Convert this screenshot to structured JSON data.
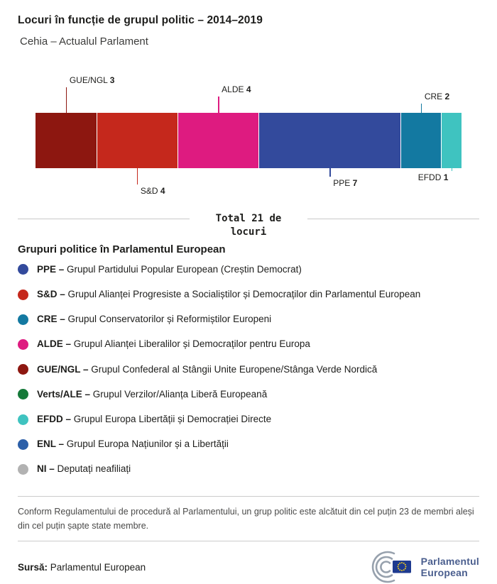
{
  "chart_data": {
    "type": "bar",
    "variant": "horizontal-stacked-seats",
    "title": "Locuri în funcție de grupul politic – 2014–2019",
    "subtitle": "Cehia – Actualul Parlament",
    "total": 21,
    "total_label": "Total 21 de locuri",
    "series": [
      {
        "name": "GUE/NGL",
        "value": 3,
        "color": "#8d1710",
        "label_position": "top"
      },
      {
        "name": "S&D",
        "value": 4,
        "color": "#c5281c",
        "label_position": "bottom"
      },
      {
        "name": "ALDE",
        "value": 4,
        "color": "#de1b80",
        "label_position": "top"
      },
      {
        "name": "PPE",
        "value": 7,
        "color": "#334a9c",
        "label_position": "bottom"
      },
      {
        "name": "CRE",
        "value": 2,
        "color": "#1379a1",
        "label_position": "top"
      },
      {
        "name": "EFDD",
        "value": 1,
        "color": "#3fc3c0",
        "label_position": "bottom"
      }
    ]
  },
  "legend": {
    "heading": "Grupuri politice în Parlamentul European",
    "separator": "–",
    "items": [
      {
        "abbr": "PPE",
        "desc": "Grupul Partidului Popular European (Creștin Democrat)",
        "color": "#334a9c"
      },
      {
        "abbr": "S&D",
        "desc": "Grupul Alianței Progresiste a Socialiștilor și Democraților din Parlamentul European",
        "color": "#c5281c"
      },
      {
        "abbr": "CRE",
        "desc": "Grupul Conservatorilor și Reformiștilor Europeni",
        "color": "#1379a1"
      },
      {
        "abbr": "ALDE",
        "desc": "Grupul Alianței Liberalilor și Democraților pentru Europa",
        "color": "#de1b80"
      },
      {
        "abbr": "GUE/NGL",
        "desc": "Grupul Confederal al Stângii Unite Europene/Stânga Verde Nordică",
        "color": "#8d1710"
      },
      {
        "abbr": "Verts/ALE",
        "desc": "Grupul Verzilor/Alianța Liberă Europeană",
        "color": "#157939"
      },
      {
        "abbr": "EFDD",
        "desc": "Grupul Europa Libertății și Democrației Directe",
        "color": "#3fc3c0"
      },
      {
        "abbr": "ENL",
        "desc": "Grupul Europa Națiunilor și a Libertății",
        "color": "#2c5fa8"
      },
      {
        "abbr": "NI",
        "desc": "Deputați neafiliați",
        "color": "#b2b2b2"
      }
    ]
  },
  "footnote": "Conform Regulamentului de procedură al Parlamentului, un grup politic este alcătuit din cel puțin 23 de membri aleși din cel puțin șapte state membre.",
  "source": {
    "label": "Sursă:",
    "value": "Parlamentul European"
  },
  "logo": {
    "line1": "Parlamentul",
    "line2": "European",
    "color": "#4a5e8e"
  }
}
